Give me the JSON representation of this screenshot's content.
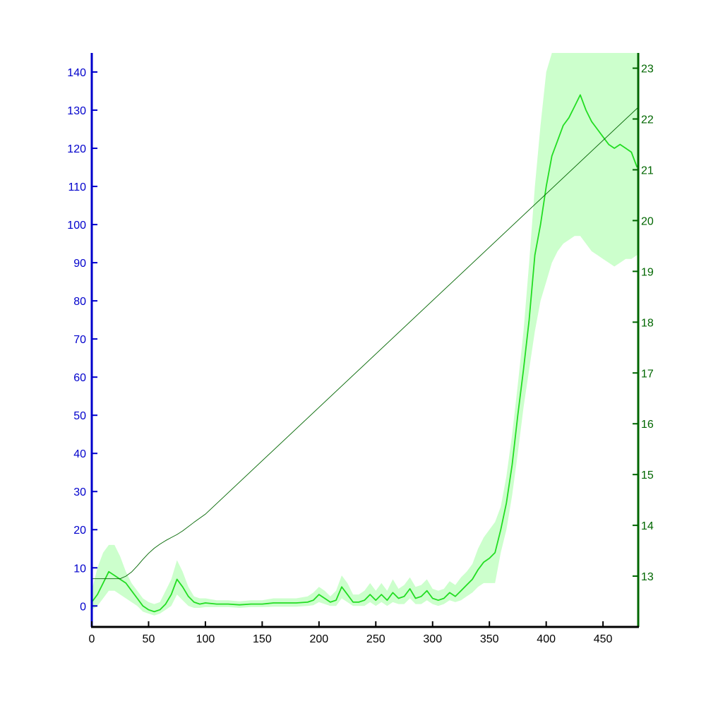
{
  "chart_data": {
    "type": "line",
    "title": "",
    "xlabel": "",
    "ylabel_left": "",
    "ylabel_right": "",
    "xlim": [
      0,
      481
    ],
    "ylim_left": [
      -5.5,
      145
    ],
    "ylim_right": [
      12.0,
      23.3
    ],
    "x_ticks": [
      0,
      50,
      100,
      150,
      200,
      250,
      300,
      350,
      400,
      450
    ],
    "y_left_ticks": [
      0,
      10,
      20,
      30,
      40,
      50,
      60,
      70,
      80,
      90,
      100,
      110,
      120,
      130,
      140
    ],
    "y_right_ticks": [
      13,
      14,
      15,
      16,
      17,
      18,
      19,
      20,
      21,
      22,
      23
    ],
    "grid": false,
    "legend": "none",
    "colors": {
      "left_axis": "#0000cc",
      "right_axis": "#006600",
      "x_axis": "#000000",
      "mean_line": "#22dd22",
      "band_fill": "#ccffcc",
      "right_series": "#006600"
    },
    "series": [
      {
        "axis": "left",
        "style": "line-with-band",
        "x": [
          0,
          5,
          10,
          15,
          20,
          25,
          30,
          35,
          40,
          45,
          50,
          55,
          60,
          65,
          70,
          75,
          80,
          85,
          90,
          95,
          100,
          110,
          120,
          130,
          140,
          150,
          160,
          170,
          180,
          190,
          195,
          200,
          205,
          210,
          215,
          220,
          225,
          230,
          235,
          240,
          245,
          250,
          255,
          260,
          265,
          270,
          275,
          280,
          285,
          290,
          295,
          300,
          305,
          310,
          315,
          320,
          325,
          330,
          335,
          340,
          345,
          350,
          355,
          360,
          365,
          370,
          375,
          380,
          385,
          390,
          395,
          400,
          405,
          410,
          415,
          420,
          425,
          430,
          435,
          440,
          445,
          450,
          455,
          460,
          465,
          470,
          475,
          480
        ],
        "y": [
          1,
          3,
          6,
          9,
          8,
          7,
          6,
          4,
          2,
          0,
          -1,
          -1.5,
          -1,
          0.5,
          3,
          7,
          5,
          2.5,
          1,
          0.5,
          0.8,
          0.5,
          0.5,
          0.3,
          0.5,
          0.5,
          0.8,
          0.8,
          0.8,
          1,
          1.5,
          3,
          2,
          1,
          1.5,
          5,
          3,
          1,
          1,
          1.5,
          3,
          1.5,
          3,
          1.5,
          3.5,
          2,
          2.5,
          4.5,
          2,
          2.5,
          4,
          2,
          1.5,
          2,
          3.5,
          2.5,
          4,
          5.5,
          7,
          9.5,
          11.5,
          12.5,
          14,
          20,
          27,
          37,
          50,
          62,
          75,
          92,
          100,
          110,
          118,
          122,
          126,
          128,
          131,
          134,
          130,
          127,
          125,
          123,
          121,
          120,
          121,
          120,
          119,
          115
        ],
        "band_upper": [
          4,
          10,
          14,
          16,
          16,
          13,
          9,
          6,
          4,
          2,
          1,
          0.5,
          1,
          4,
          7,
          12,
          9,
          5,
          2.5,
          2,
          2,
          1.5,
          1.5,
          1.2,
          1.5,
          1.5,
          2,
          2,
          2,
          2.5,
          3.5,
          5,
          4,
          2.5,
          4,
          8,
          6,
          3,
          3,
          4,
          6,
          4,
          6,
          4,
          7,
          4.5,
          5.5,
          7.5,
          5,
          5.5,
          7,
          4.5,
          4,
          4.5,
          6.5,
          5.5,
          7.5,
          9,
          11,
          15,
          18,
          20,
          22,
          26,
          34,
          45,
          58,
          72,
          90,
          110,
          126,
          140,
          145,
          145,
          145,
          145,
          145,
          145,
          145,
          145,
          145,
          145,
          145,
          145,
          145,
          145,
          145,
          145
        ],
        "band_lower": [
          -1,
          0,
          2,
          4,
          4,
          3,
          2,
          1,
          0,
          -1.5,
          -2,
          -2.5,
          -2,
          -1,
          0,
          3,
          1.5,
          0,
          -0.5,
          -0.5,
          -0.3,
          -0.3,
          -0.3,
          -0.5,
          -0.3,
          -0.3,
          -0.2,
          -0.2,
          -0.2,
          0,
          0.2,
          1,
          0.5,
          0,
          0,
          2,
          1,
          0,
          0,
          0,
          1,
          0,
          1,
          0,
          1,
          0.5,
          0.5,
          2,
          0.5,
          0.5,
          1.5,
          0.5,
          0,
          0.5,
          1.5,
          1,
          1.5,
          2.5,
          3.5,
          5,
          6,
          6,
          6,
          14,
          20,
          29,
          40,
          52,
          62,
          72,
          80,
          85,
          90,
          93,
          95,
          96,
          97,
          97,
          95,
          93,
          92,
          91,
          90,
          89,
          90,
          91,
          91,
          92
        ]
      },
      {
        "axis": "right",
        "style": "thin-line",
        "x": [
          0,
          10,
          20,
          25,
          30,
          35,
          40,
          45,
          50,
          55,
          60,
          65,
          70,
          75,
          80,
          90,
          100,
          481
        ],
        "y": [
          12.95,
          12.95,
          12.95,
          12.95,
          13.0,
          13.08,
          13.2,
          13.33,
          13.45,
          13.55,
          13.63,
          13.7,
          13.76,
          13.82,
          13.89,
          14.06,
          14.22,
          22.23
        ]
      }
    ]
  }
}
